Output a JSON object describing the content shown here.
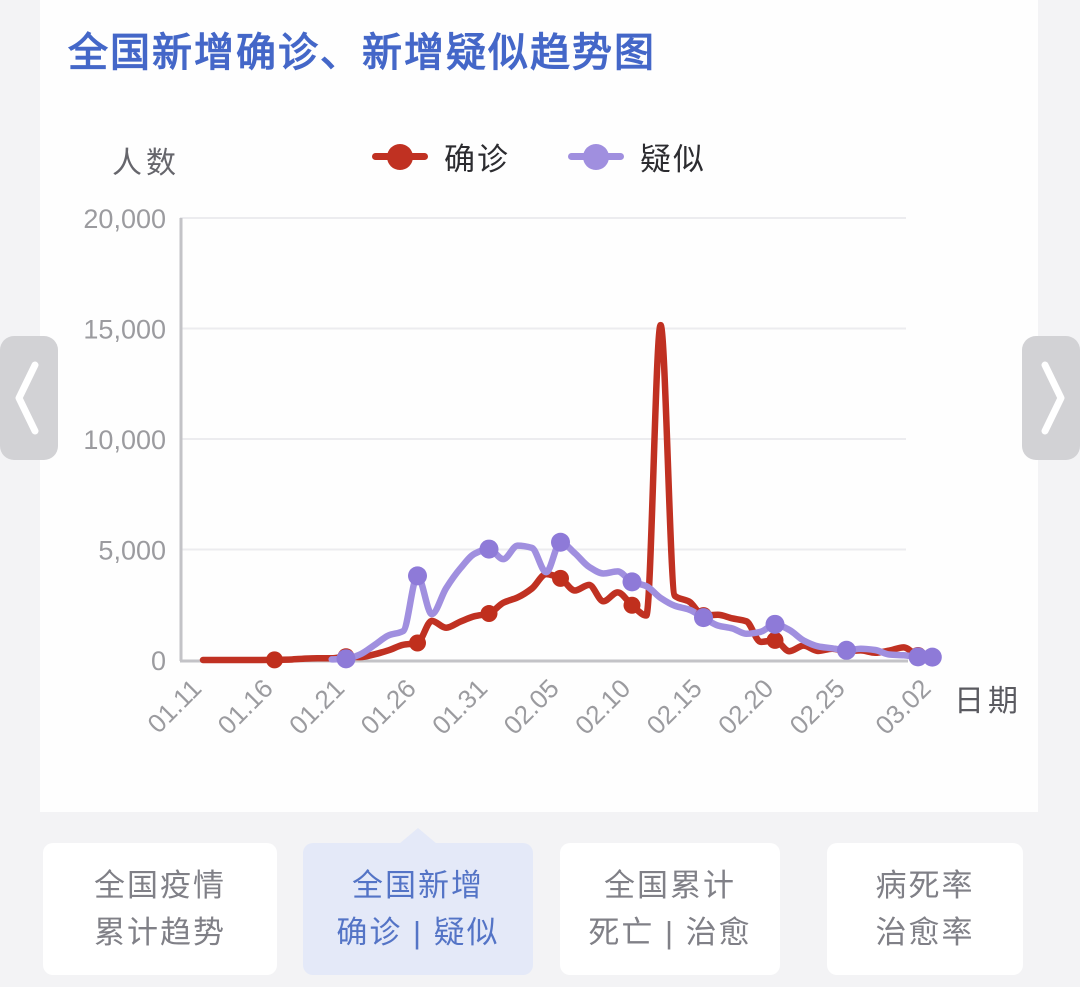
{
  "title": "全国新增确诊、新增疑似趋势图",
  "icons": {
    "prev": "chevron-left",
    "next": "chevron-right"
  },
  "colors": {
    "title_blue": "#4467c8",
    "confirmed_red": "#c03122",
    "suspected_purple": "#a08fdf",
    "active_tab_bg": "#e4e9f8",
    "active_tab_text": "#5474c6",
    "axis_text_gray": "#9b9b9f"
  },
  "chart_data": {
    "type": "line",
    "title": "全国新增确诊、新增疑似趋势图",
    "ylabel": "人数",
    "xlabel": "日期",
    "ylim": [
      0,
      20000
    ],
    "grid": true,
    "legend_position": "top-center",
    "y_ticks": [
      0,
      5000,
      10000,
      15000,
      20000
    ],
    "y_tick_labels": [
      "0",
      "5,000",
      "10,000",
      "15,000",
      "20,000"
    ],
    "x_tick_indices": [
      0,
      5,
      10,
      15,
      20,
      25,
      30,
      35,
      40,
      45,
      51
    ],
    "x_tick_labels": [
      "01.11",
      "01.16",
      "01.21",
      "01.26",
      "01.31",
      "02.05",
      "02.10",
      "02.15",
      "02.20",
      "02.25",
      "03.02"
    ],
    "marker_indices": [
      5,
      10,
      15,
      20,
      25,
      30,
      35,
      40,
      45,
      50,
      51
    ],
    "dates": [
      "01.11",
      "01.12",
      "01.13",
      "01.14",
      "01.15",
      "01.16",
      "01.17",
      "01.18",
      "01.19",
      "01.20",
      "01.21",
      "01.22",
      "01.23",
      "01.24",
      "01.25",
      "01.26",
      "01.27",
      "01.28",
      "01.29",
      "01.30",
      "01.31",
      "02.01",
      "02.02",
      "02.03",
      "02.04",
      "02.05",
      "02.06",
      "02.07",
      "02.08",
      "02.09",
      "02.10",
      "02.11",
      "02.12",
      "02.13",
      "02.14",
      "02.15",
      "02.16",
      "02.17",
      "02.18",
      "02.19",
      "02.20",
      "02.21",
      "02.22",
      "02.23",
      "02.24",
      "02.25",
      "02.26",
      "02.27",
      "02.28",
      "02.29",
      "03.01",
      "03.02"
    ],
    "series": [
      {
        "name": "确诊",
        "color": "#c03122",
        "dot_color": "#c02f1d",
        "values": [
          0,
          0,
          0,
          0,
          0,
          4,
          17,
          59,
          77,
          77,
          149,
          131,
          259,
          444,
          688,
          769,
          1771,
          1459,
          1737,
          1982,
          2102,
          2590,
          2829,
          3235,
          3887,
          3694,
          3143,
          3399,
          2656,
          3062,
          2478,
          2015,
          15152,
          2900,
          2641,
          2009,
          2048,
          1886,
          1749,
          820,
          889,
          397,
          648,
          409,
          508,
          406,
          433,
          327,
          427,
          573,
          202,
          125
        ]
      },
      {
        "name": "疑似",
        "color": "#a08fdf",
        "dot_color": "#8e7ad8",
        "values": [
          null,
          null,
          null,
          null,
          null,
          null,
          null,
          null,
          null,
          27,
          53,
          257,
          680,
          1118,
          1309,
          3806,
          2077,
          3248,
          4148,
          4812,
          5019,
          4562,
          5173,
          5072,
          3971,
          5328,
          4833,
          4214,
          3916,
          4008,
          3536,
          3342,
          2807,
          2450,
          2277,
          1918,
          1563,
          1432,
          1185,
          1277,
          1614,
          1361,
          882,
          620,
          530,
          439,
          508,
          452,
          248,
          214,
          141,
          129
        ]
      }
    ]
  },
  "tabs": [
    {
      "line1": "全国疫情",
      "line2": "累计趋势",
      "active": false
    },
    {
      "line1": "全国新增",
      "line2": "确诊 | 疑似",
      "active": true
    },
    {
      "line1": "全国累计",
      "line2": "死亡 | 治愈",
      "active": false
    },
    {
      "line1": "病死率",
      "line2": "治愈率",
      "active": false
    }
  ]
}
